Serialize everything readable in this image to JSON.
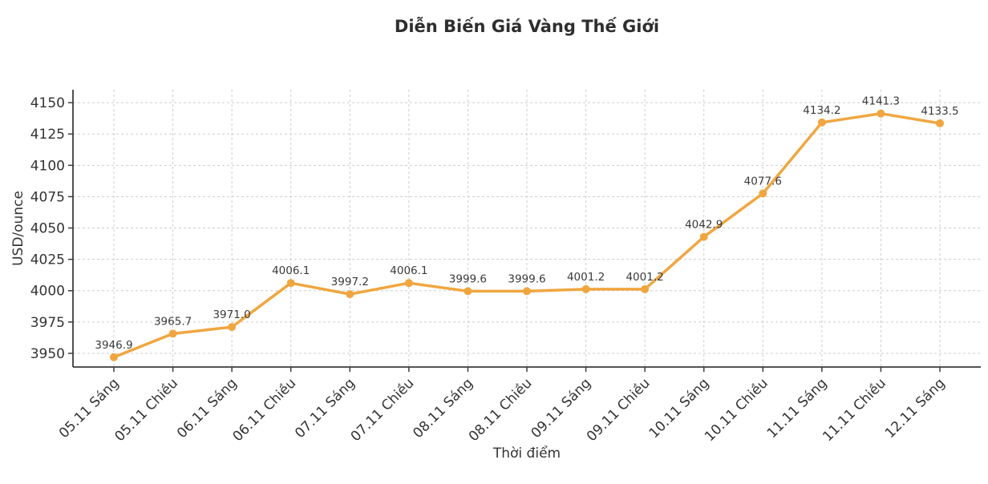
{
  "figure": {
    "title": "Diễn Biến Giá Vàng Thế Giới"
  },
  "chart_data": {
    "type": "line",
    "title": "Diễn Biến Giá Vàng Thế Giới",
    "xlabel": "Thời điểm",
    "ylabel": "USD/ounce",
    "categories": [
      "05.11 Sáng",
      "05.11 Chiều",
      "06.11 Sáng",
      "06.11 Chiều",
      "07.11 Sáng",
      "07.11 Chiều",
      "08.11 Sáng",
      "08.11 Chiều",
      "09.11 Sáng",
      "09.11 Chiều",
      "10.11 Sáng",
      "10.11 Chiều",
      "11.11 Sáng",
      "11.11 Chiều",
      "12.11 Sáng"
    ],
    "values": [
      3946.9,
      3965.7,
      3971.0,
      4006.1,
      3997.2,
      4006.1,
      3999.6,
      3999.6,
      4001.2,
      4001.2,
      4042.9,
      4077.6,
      4134.2,
      4141.3,
      4133.5
    ],
    "point_labels": [
      "3946.9",
      "3965.7",
      "3971.0",
      "4006.1",
      "3997.2",
      "4006.1",
      "3999.6",
      "3999.6",
      "4001.2",
      "4001.2",
      "4042.9",
      "4077.6",
      "4134.2",
      "4141.3",
      "4133.5"
    ],
    "yticks": [
      3950,
      3975,
      4000,
      4025,
      4050,
      4075,
      4100,
      4125,
      4150
    ],
    "ylim": [
      3939.1,
      4160.3
    ],
    "grid": true,
    "grid_style": "dashed",
    "legend": "none",
    "line_color": "#F0A640",
    "marker": "circle",
    "marker_color": "#F0A640",
    "grid_color": "#CDCDCD",
    "spine_color": "#3C3C3C",
    "title_color": "#2E2E2E",
    "tick_label_color": "#333333",
    "point_label_color": "#3A3A3A"
  }
}
